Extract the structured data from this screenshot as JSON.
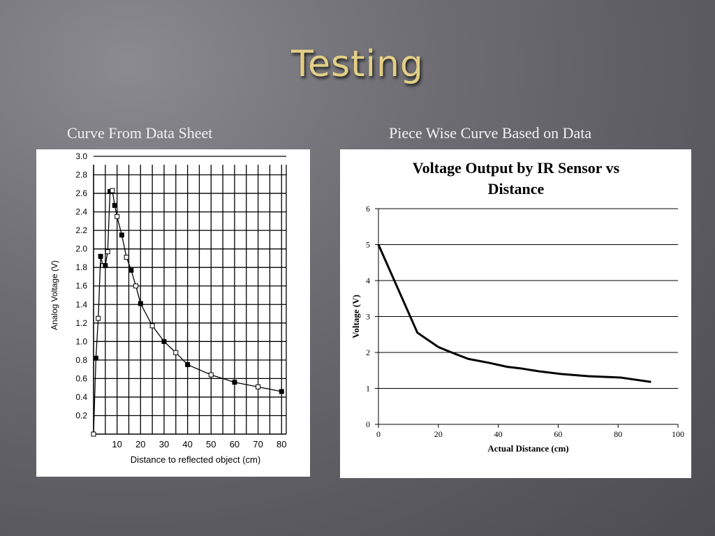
{
  "slide": {
    "title": "Testing",
    "left_caption": "Curve From Data Sheet",
    "right_caption": "Piece Wise Curve Based on Data"
  },
  "colors": {
    "title": "#e3cf86",
    "caption": "#f2f2f2",
    "line": "#000000"
  },
  "chart_data": [
    {
      "type": "line",
      "title": "",
      "xlabel": "Distance to reflected object (cm)",
      "ylabel": "Analog Voltage (V)",
      "xlim": [
        0,
        82
      ],
      "ylim": [
        0,
        3.0
      ],
      "x_ticks": [
        "10",
        "20",
        "30",
        "40",
        "50",
        "60",
        "70",
        "80"
      ],
      "y_ticks": [
        "0.2",
        "0.4",
        "0.6",
        "0.8",
        "1.0",
        "1.2",
        "1.4",
        "1.6",
        "1.8",
        "2.0",
        "2.2",
        "2.4",
        "2.6",
        "2.8",
        "3.0"
      ],
      "grid": true,
      "series": [
        {
          "x": [
            0,
            1,
            2,
            3,
            4,
            5,
            6,
            7,
            8,
            9,
            10,
            12,
            14,
            16,
            18,
            20,
            25,
            30,
            35,
            40,
            50,
            60,
            70,
            80
          ],
          "y": [
            0.0,
            0.82,
            1.25,
            1.92,
            1.82,
            1.82,
            1.97,
            2.62,
            2.63,
            2.47,
            2.35,
            2.15,
            1.91,
            1.77,
            1.6,
            1.41,
            1.17,
            1.0,
            0.88,
            0.75,
            0.64,
            0.56,
            0.51,
            0.46
          ]
        }
      ]
    },
    {
      "type": "line",
      "title": "Voltage Output by IR Sensor vs Distance",
      "xlabel": "Actual Distance (cm)",
      "ylabel": "Voltage (V)",
      "xlim": [
        0,
        100
      ],
      "ylim": [
        0,
        6
      ],
      "x_ticks": [
        "0",
        "20",
        "40",
        "60",
        "80",
        "100"
      ],
      "y_ticks": [
        "0",
        "1",
        "2",
        "3",
        "4",
        "5",
        "6"
      ],
      "grid": true,
      "series": [
        {
          "x": [
            0,
            13,
            20,
            25,
            30,
            37,
            43,
            48,
            54,
            61,
            70,
            81,
            91
          ],
          "y": [
            5.0,
            2.55,
            2.15,
            1.98,
            1.82,
            1.71,
            1.6,
            1.55,
            1.47,
            1.4,
            1.34,
            1.3,
            1.18
          ]
        }
      ]
    }
  ]
}
